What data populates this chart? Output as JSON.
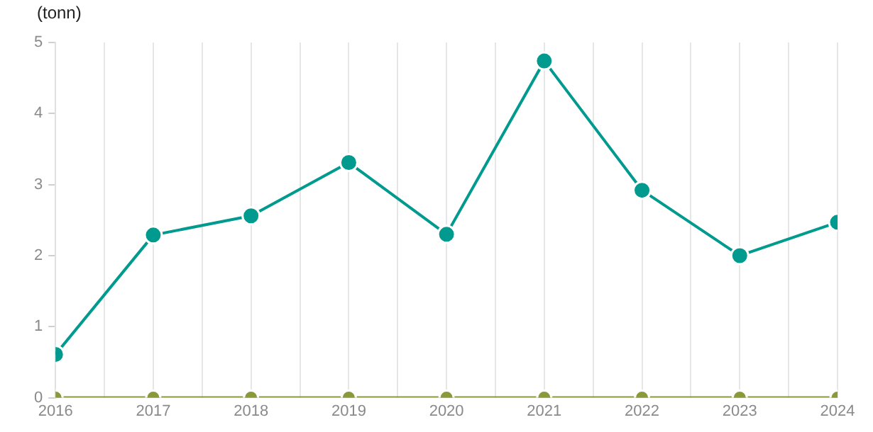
{
  "chart_data": {
    "type": "line",
    "ylabel": "(tonn)",
    "x": [
      2016,
      2017,
      2018,
      2019,
      2020,
      2021,
      2022,
      2023,
      2024
    ],
    "series": [
      {
        "color": "#009a8e",
        "values": [
          0.61,
          2.29,
          2.56,
          3.31,
          2.3,
          4.74,
          2.92,
          2.0,
          2.47
        ]
      },
      {
        "color": "#8a9a3b",
        "values": [
          0,
          0,
          0,
          0,
          0,
          0,
          0,
          0,
          0
        ]
      }
    ],
    "xlim": [
      2016,
      2024
    ],
    "xticks": [
      2016,
      {
        "value": 2016.5,
        "label": null
      },
      2017,
      {
        "value": 2017.5,
        "label": null
      },
      2018,
      {
        "value": 2018.5,
        "label": null
      },
      2019,
      {
        "value": 2019.5,
        "label": null
      },
      2020,
      {
        "value": 2020.5,
        "label": null
      },
      2021,
      {
        "value": 2021.5,
        "label": null
      },
      2022,
      {
        "value": 2022.5,
        "label": null
      },
      2023,
      {
        "value": 2023.5,
        "label": null
      },
      2024
    ],
    "ylim": [
      0,
      5
    ],
    "yticks": [
      0,
      1,
      2,
      3,
      4,
      5
    ],
    "grid": "x",
    "marker": "circle",
    "line_style": "solid"
  }
}
